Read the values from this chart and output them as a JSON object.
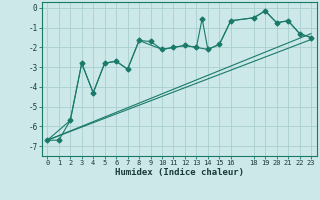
{
  "bg_color": "#cce8e8",
  "grid_color": "#aacfcf",
  "line_color": "#1a7a6a",
  "xlabel": "Humidex (Indice chaleur)",
  "xlim": [
    -0.5,
    23.5
  ],
  "ylim": [
    -7.5,
    0.3
  ],
  "yticks": [
    0,
    -1,
    -2,
    -3,
    -4,
    -5,
    -6,
    -7
  ],
  "xticks": [
    0,
    1,
    2,
    3,
    4,
    5,
    6,
    7,
    8,
    9,
    10,
    11,
    12,
    13,
    14,
    15,
    16,
    18,
    19,
    20,
    21,
    22,
    23
  ],
  "line_jagged_x": [
    0,
    1,
    2,
    3,
    4,
    5,
    6,
    7,
    8,
    9,
    10,
    11,
    12,
    13,
    13.5,
    14,
    15,
    16,
    18,
    19,
    20,
    21,
    22,
    23
  ],
  "line_jagged_y": [
    -6.7,
    -6.7,
    -5.7,
    -2.8,
    -4.3,
    -2.8,
    -2.7,
    -3.1,
    -1.65,
    -1.7,
    -2.1,
    -2.0,
    -1.9,
    -2.0,
    -0.55,
    -2.1,
    -1.85,
    -0.65,
    -0.5,
    -0.15,
    -0.75,
    -0.65,
    -1.3,
    -1.5
  ],
  "line_smooth_x": [
    0,
    2,
    3,
    4,
    5,
    6,
    7,
    8,
    10,
    11,
    12,
    13,
    14,
    15,
    16,
    18,
    19,
    20,
    21,
    22,
    23
  ],
  "line_smooth_y": [
    -6.7,
    -5.7,
    -2.8,
    -4.3,
    -2.8,
    -2.7,
    -3.1,
    -1.65,
    -2.1,
    -2.0,
    -1.9,
    -2.0,
    -2.1,
    -1.85,
    -0.65,
    -0.5,
    -0.15,
    -0.75,
    -0.65,
    -1.3,
    -1.5
  ],
  "trend1_x": [
    0,
    23
  ],
  "trend1_y": [
    -6.7,
    -1.3
  ],
  "trend2_x": [
    0,
    23
  ],
  "trend2_y": [
    -6.7,
    -1.6
  ]
}
